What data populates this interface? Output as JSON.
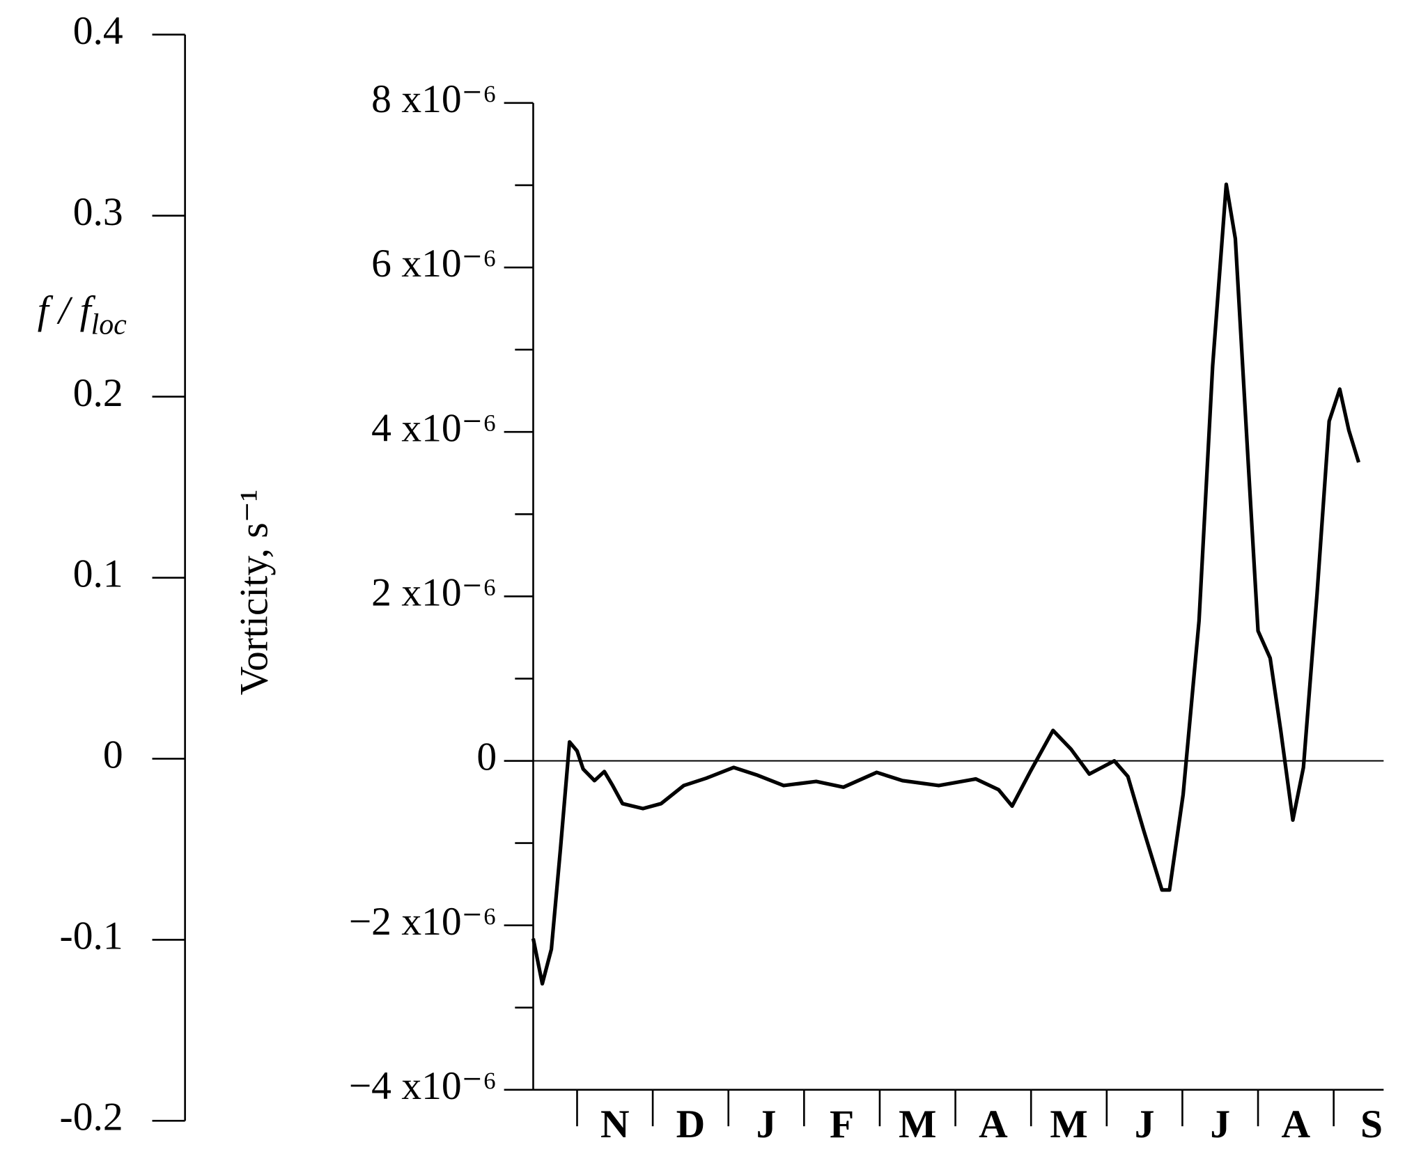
{
  "chart_data": {
    "type": "line",
    "ylabel": "Vorticity, s⁻¹",
    "categories": [
      "N",
      "D",
      "J",
      "F",
      "M",
      "A",
      "M",
      "J",
      "J",
      "A",
      "S"
    ],
    "month_boundaries": [
      0,
      1,
      2,
      3,
      4,
      5,
      6,
      7,
      8,
      9,
      10
    ],
    "xlim": [
      -0.58,
      10.66
    ],
    "ylim": [
      -4e-06,
      8e-06
    ],
    "yticks": [
      {
        "value": 8e-06,
        "label": "8 x10⁻⁶"
      },
      {
        "value": 6e-06,
        "label": "6 x10⁻⁶"
      },
      {
        "value": 4e-06,
        "label": "4 x10⁻⁶"
      },
      {
        "value": 2e-06,
        "label": "2 x10⁻⁶"
      },
      0,
      {
        "value": -2e-06,
        "label": "−2 x10⁻⁶"
      },
      {
        "value": -4e-06,
        "label": "−4 x10⁻⁶"
      }
    ],
    "yminorticks": [
      7e-06,
      5e-06,
      3e-06,
      1e-06,
      -1e-06,
      -3e-06
    ],
    "zero_line": true,
    "y2label": "f / f",
    "y2label_subscript": "loc",
    "y2lim": [
      -0.2,
      0.4
    ],
    "y2ticks": [
      0.4,
      0.3,
      0.2,
      0.1,
      0,
      {
        "value": -0.1,
        "label": "-0.1"
      },
      {
        "value": -0.2,
        "label": "-0.2"
      }
    ],
    "series": [
      {
        "color": "#000000",
        "x": [
          -0.58,
          -0.46,
          -0.34,
          -0.22,
          -0.1,
          0,
          0.08,
          0.23,
          0.36,
          0.47,
          0.6,
          0.87,
          1.11,
          1.41,
          1.71,
          2.07,
          2.37,
          2.73,
          3.16,
          3.52,
          3.96,
          4.3,
          4.78,
          5.27,
          5.57,
          5.75,
          5.99,
          6.29,
          6.53,
          6.77,
          7.1,
          7.28,
          7.49,
          7.73,
          7.83,
          8.01,
          8.22,
          8.4,
          8.58,
          8.7,
          8.88,
          9.0,
          9.16,
          9.3,
          9.46,
          9.6,
          9.78,
          9.94,
          10.08,
          10.2,
          10.33
        ],
        "values": [
          -2.16e-06,
          -2.71e-06,
          -2.29e-06,
          -1.07e-06,
          2.3e-07,
          1.2e-07,
          -1e-07,
          -2.4e-07,
          -1.3e-07,
          -3e-07,
          -5.2e-07,
          -5.8e-07,
          -5.2e-07,
          -3e-07,
          -2.1e-07,
          -8e-08,
          -1.7e-07,
          -3e-07,
          -2.5e-07,
          -3.2e-07,
          -1.4e-07,
          -2.4e-07,
          -3e-07,
          -2.2e-07,
          -3.5e-07,
          -5.5e-07,
          -1.3e-07,
          3.7e-07,
          1.4e-07,
          -1.6e-07,
          0,
          -1.9e-07,
          -8.5e-07,
          -1.57e-06,
          -1.57e-06,
          -4.1e-07,
          1.7e-06,
          4.8e-06,
          7.01e-06,
          6.35e-06,
          3.47e-06,
          1.58e-06,
          1.25e-06,
          3.7e-07,
          -7.2e-07,
          -8e-08,
          2.03e-06,
          4.13e-06,
          4.52e-06,
          4.02e-06,
          3.63e-06
        ]
      }
    ]
  }
}
